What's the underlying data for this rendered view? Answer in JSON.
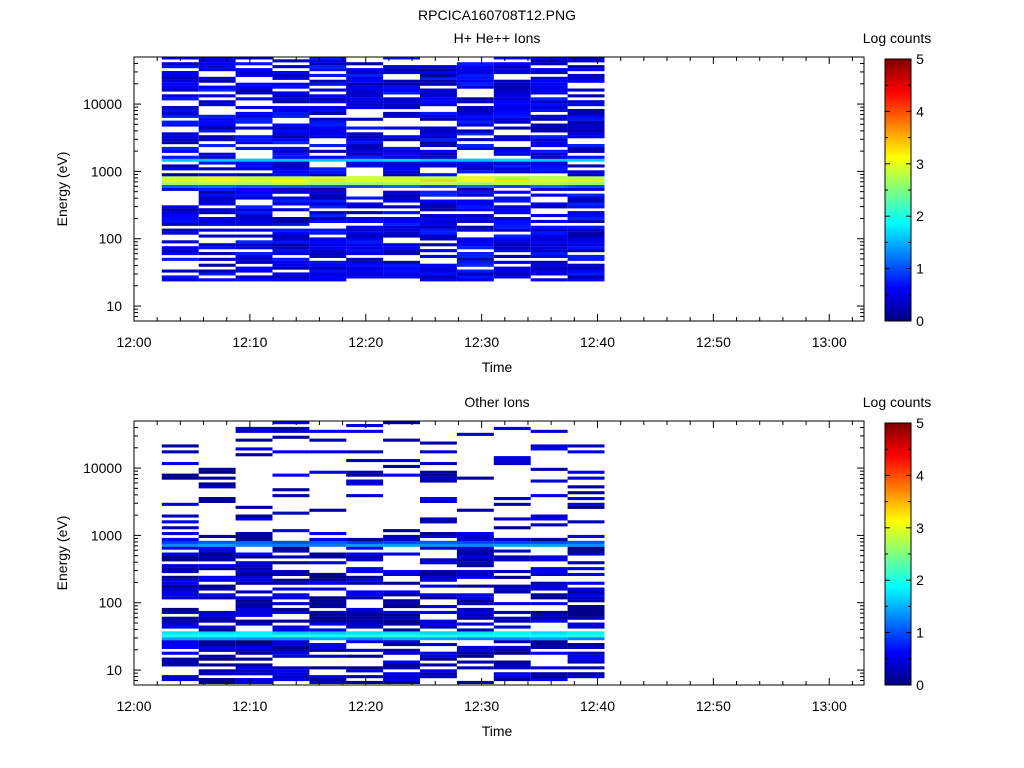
{
  "figure": {
    "title": "RPCICA160708T12.PNG"
  },
  "colors": {
    "background": "#ffffff",
    "frame": "#000000"
  },
  "colormap": {
    "name": "jet",
    "stops": [
      "#00007f",
      "#0000ff",
      "#007fff",
      "#00ffff",
      "#7fff7f",
      "#ffff00",
      "#ff7f00",
      "#ff0000",
      "#7f0000"
    ]
  },
  "chart_data": [
    {
      "type": "heatmap",
      "title": "H+ He++ Ions",
      "xlabel": "Time",
      "ylabel": "Energy (eV)",
      "x_ticks": [
        "12:00",
        "12:10",
        "12:20",
        "12:30",
        "12:40",
        "12:50",
        "13:00"
      ],
      "x_range_minutes": [
        0,
        63
      ],
      "y_scale": "log",
      "y_range": [
        6,
        50000
      ],
      "y_ticks": [
        10,
        100,
        1000,
        10000
      ],
      "y_tick_labels": [
        "10",
        "100",
        "1000",
        "10000"
      ],
      "colorbar": {
        "label": "Log counts",
        "range": [
          0,
          5
        ],
        "ticks": [
          "0",
          "1",
          "2",
          "3",
          "4",
          "5"
        ]
      },
      "data_span_minutes": [
        2.4,
        40.6
      ],
      "time_bins": 12,
      "notable_bands": [
        {
          "energy_ev": 740,
          "log_counts": 3.2
        },
        {
          "energy_ev": 800,
          "log_counts": 2.9
        },
        {
          "energy_ev": 690,
          "log_counts": 2.7
        },
        {
          "energy_ev": 1500,
          "log_counts": 1.6
        },
        {
          "energy_ev": 620,
          "log_counts": 1.1
        }
      ],
      "typical_log_counts": 0.5,
      "low_energy_cutoff_ev": 30
    },
    {
      "type": "heatmap",
      "title": "Other Ions",
      "xlabel": "Time",
      "ylabel": "Energy (eV)",
      "x_ticks": [
        "12:00",
        "12:10",
        "12:20",
        "12:30",
        "12:40",
        "12:50",
        "13:00"
      ],
      "x_range_minutes": [
        0,
        63
      ],
      "y_scale": "log",
      "y_range": [
        6,
        50000
      ],
      "y_ticks": [
        10,
        100,
        1000,
        10000
      ],
      "y_tick_labels": [
        "10",
        "100",
        "1000",
        "10000"
      ],
      "colorbar": {
        "label": "Log counts",
        "range": [
          0,
          5
        ],
        "ticks": [
          "0",
          "1",
          "2",
          "3",
          "4",
          "5"
        ]
      },
      "data_span_minutes": [
        2.4,
        40.6
      ],
      "time_bins": 12,
      "notable_bands": [
        {
          "energy_ev": 33,
          "log_counts": 2.0
        },
        {
          "energy_ev": 37,
          "log_counts": 1.7
        },
        {
          "energy_ev": 30,
          "log_counts": 1.4
        },
        {
          "energy_ev": 740,
          "log_counts": 1.3
        },
        {
          "energy_ev": 800,
          "log_counts": 1.0
        }
      ],
      "typical_log_counts": 0.3,
      "low_energy_cutoff_ev": 8
    }
  ]
}
